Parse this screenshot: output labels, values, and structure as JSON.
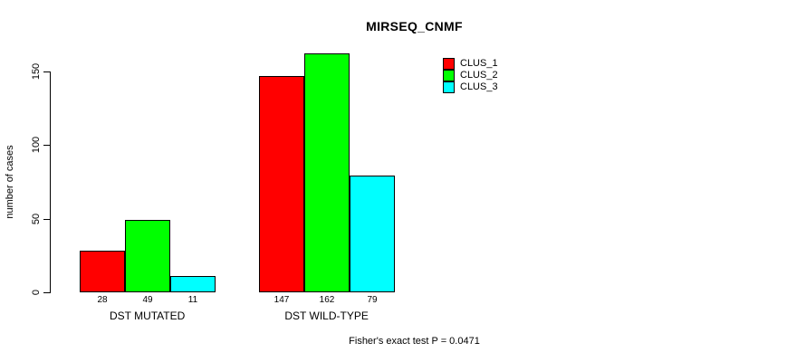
{
  "chart_data": {
    "type": "bar",
    "title": "MIRSEQ_CNMF",
    "xlabel": "",
    "ylabel": "number of cases",
    "categories": [
      "DST MUTATED",
      "DST WILD-TYPE"
    ],
    "series": [
      {
        "name": "CLUS_1",
        "color": "#FF0000",
        "values": [
          28,
          147
        ]
      },
      {
        "name": "CLUS_2",
        "color": "#00FF00",
        "values": [
          49,
          162
        ]
      },
      {
        "name": "CLUS_3",
        "color": "#00FFFF",
        "values": [
          11,
          79
        ]
      }
    ],
    "y_ticks": [
      0,
      50,
      100,
      150
    ],
    "ylim": [
      0,
      162
    ],
    "grid": false,
    "bar_value_labels": true,
    "legend_position": "top-right",
    "footer": "Fisher's exact test P = 0.0471"
  },
  "colors": {
    "background": "#FFFFFF",
    "axis": "#000000",
    "text": "#000000",
    "bar_border": "#000000"
  }
}
